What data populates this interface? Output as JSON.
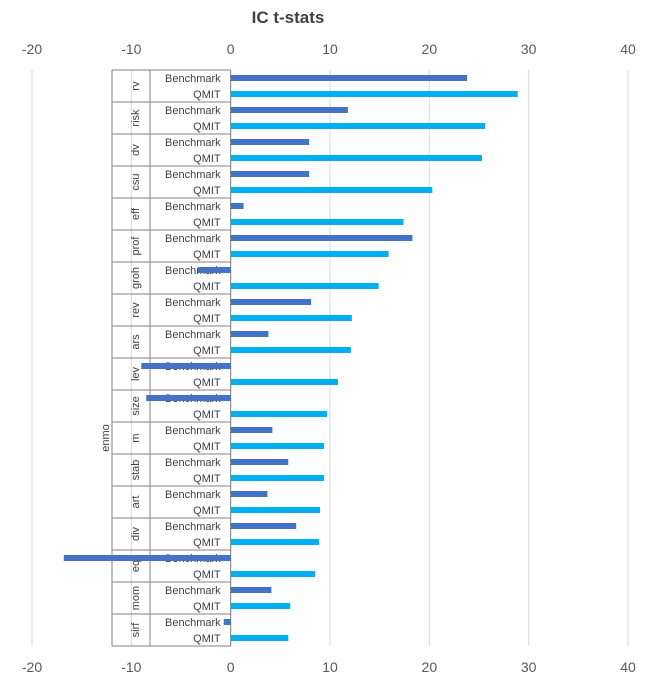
{
  "chart_data": {
    "type": "bar",
    "orientation": "horizontal",
    "title": "IC t-stats",
    "xlim": [
      -20,
      40
    ],
    "xticks": [
      "-20",
      "-10",
      "0",
      "10",
      "20",
      "30",
      "40"
    ],
    "grid": true,
    "legend": "none",
    "series": [
      {
        "name": "Benchmark",
        "color": "#4472c4"
      },
      {
        "name": "QMIT",
        "color": "#00b0f0"
      }
    ],
    "groups": [
      {
        "name": "rv",
        "benchmark": 23.8,
        "qmit": 28.9
      },
      {
        "name": "risk",
        "benchmark": 11.8,
        "qmit": 25.6
      },
      {
        "name": "dv",
        "benchmark": 7.9,
        "qmit": 25.3
      },
      {
        "name": "csu",
        "benchmark": 7.9,
        "qmit": 20.3
      },
      {
        "name": "eff",
        "benchmark": 1.3,
        "qmit": 17.4
      },
      {
        "name": "prof",
        "benchmark": 18.3,
        "qmit": 15.9
      },
      {
        "name": "groh",
        "benchmark": -3.3,
        "qmit": 14.9
      },
      {
        "name": "rev",
        "benchmark": 8.1,
        "qmit": 12.2
      },
      {
        "name": "ars",
        "benchmark": 3.8,
        "qmit": 12.1
      },
      {
        "name": "lev",
        "benchmark": -9.0,
        "qmit": 10.8
      },
      {
        "name": "size",
        "benchmark": -8.5,
        "qmit": 9.7
      },
      {
        "name": "m",
        "benchmark": 4.2,
        "qmit": 9.4
      },
      {
        "name": "stab",
        "benchmark": 5.8,
        "qmit": 9.4
      },
      {
        "name": "art",
        "benchmark": 3.7,
        "qmit": 9.0
      },
      {
        "name": "div",
        "benchmark": 6.6,
        "qmit": 8.9
      },
      {
        "name": "eq",
        "benchmark": -16.8,
        "qmit": 8.5
      },
      {
        "name": "mom",
        "benchmark": 4.1,
        "qmit": 6.0
      },
      {
        "name": "sirf",
        "benchmark": -0.7,
        "qmit": 5.8
      }
    ],
    "super_groups": [
      {
        "name": "enmo"
      }
    ]
  }
}
